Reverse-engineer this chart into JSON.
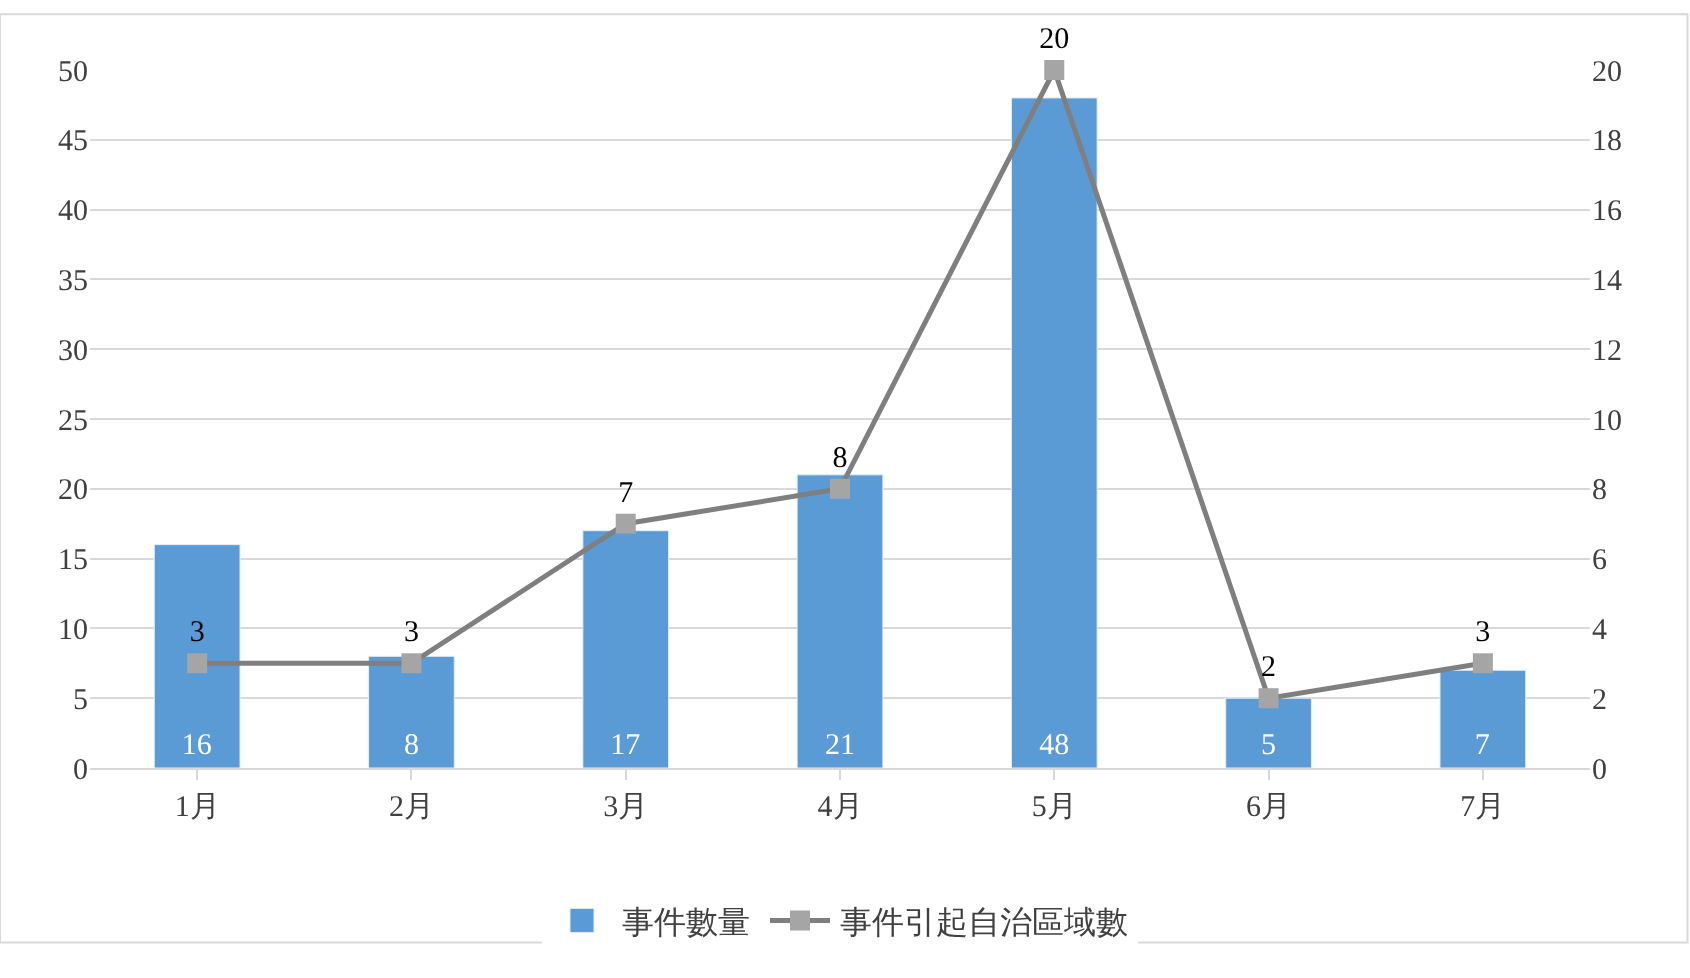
{
  "chart_data": {
    "type": "bar",
    "categories": [
      "1月",
      "2月",
      "3月",
      "4月",
      "5月",
      "6月",
      "7月"
    ],
    "series": [
      {
        "name": "事件數量",
        "color": "#5b9bd5",
        "values": [
          16,
          8,
          17,
          21,
          48,
          5,
          7
        ]
      },
      {
        "name": "事件引起自治區域數",
        "type": "line",
        "axis": "y2",
        "color": "#7f7f7f",
        "values": [
          3,
          3,
          7,
          8,
          20,
          2,
          3
        ]
      }
    ],
    "ylim": [
      0,
      50
    ],
    "yticks": [
      0,
      5,
      10,
      15,
      20,
      25,
      30,
      35,
      40,
      45,
      50
    ],
    "y2lim": [
      0,
      20
    ],
    "y2ticks": [
      0,
      2,
      4,
      6,
      8,
      10,
      12,
      14,
      16,
      18,
      20
    ],
    "grid": "y",
    "legend": "bottom",
    "data_labels": true,
    "marker": "square",
    "line_style": "solid"
  }
}
